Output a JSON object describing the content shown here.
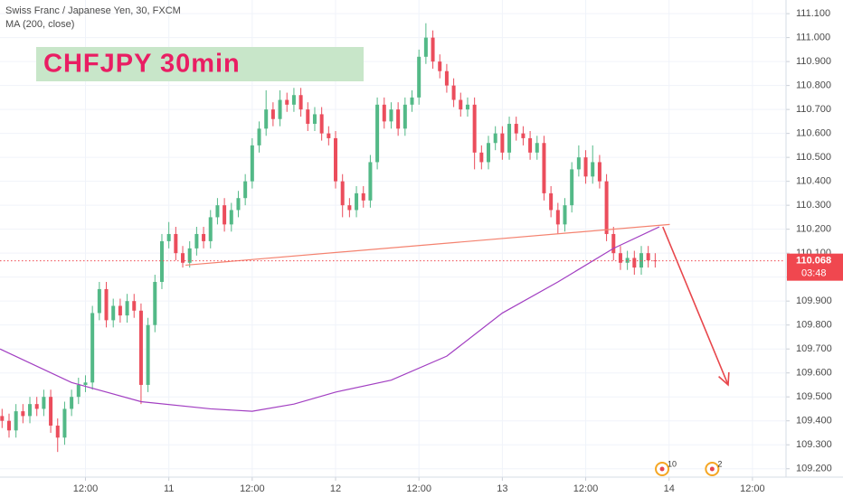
{
  "chart_data": {
    "type": "candlestick",
    "title": "Swiss Franc / Japanese Yen, 30, FXCM",
    "badge": "CHFJPY 30min",
    "xlim": [
      -0.3,
      112.7
    ],
    "ylim": [
      109.165,
      111.157
    ],
    "grid": true,
    "xticks": [
      {
        "value": 12,
        "label": "12:00"
      },
      {
        "value": 24,
        "label": "11"
      },
      {
        "value": 36,
        "label": "12:00"
      },
      {
        "value": 48,
        "label": "12"
      },
      {
        "value": 60,
        "label": "12:00"
      },
      {
        "value": 72,
        "label": "13"
      },
      {
        "value": 84,
        "label": "12:00"
      },
      {
        "value": 96,
        "label": "14"
      },
      {
        "value": 108,
        "label": "12:00"
      }
    ],
    "yticks": [
      {
        "value": 109.2,
        "label": "109.200"
      },
      {
        "value": 109.3,
        "label": "109.300"
      },
      {
        "value": 109.4,
        "label": "109.400"
      },
      {
        "value": 109.5,
        "label": "109.500"
      },
      {
        "value": 109.6,
        "label": "109.600"
      },
      {
        "value": 109.7,
        "label": "109.700"
      },
      {
        "value": 109.8,
        "label": "109.800"
      },
      {
        "value": 109.9,
        "label": "109.900"
      },
      {
        "value": 110.0,
        "label": "110.000"
      },
      {
        "value": 110.1,
        "label": "110.100"
      },
      {
        "value": 110.2,
        "label": "110.200"
      },
      {
        "value": 110.3,
        "label": "110.300"
      },
      {
        "value": 110.4,
        "label": "110.400"
      },
      {
        "value": 110.5,
        "label": "110.500"
      },
      {
        "value": 110.6,
        "label": "110.600"
      },
      {
        "value": 110.7,
        "label": "110.700"
      },
      {
        "value": 110.8,
        "label": "110.800"
      },
      {
        "value": 110.9,
        "label": "110.900"
      },
      {
        "value": 111.0,
        "label": "111.000"
      },
      {
        "value": 111.1,
        "label": "111.100"
      }
    ],
    "candles": {
      "up_color": "#53b987",
      "down_color": "#eb4d5c",
      "x": [
        0,
        1,
        2,
        3,
        4,
        5,
        6,
        7,
        8,
        9,
        10,
        11,
        12,
        13,
        14,
        15,
        16,
        17,
        18,
        19,
        20,
        21,
        22,
        23,
        24,
        25,
        26,
        27,
        28,
        29,
        30,
        31,
        32,
        33,
        34,
        35,
        36,
        37,
        38,
        39,
        40,
        41,
        42,
        43,
        44,
        45,
        46,
        47,
        48,
        49,
        50,
        51,
        52,
        53,
        54,
        55,
        56,
        57,
        58,
        59,
        60,
        61,
        62,
        63,
        64,
        65,
        66,
        67,
        68,
        69,
        70,
        71,
        72,
        73,
        74,
        75,
        76,
        77,
        78,
        79,
        80,
        81,
        82,
        83,
        84,
        85,
        86,
        87,
        88,
        89,
        90,
        91,
        92,
        93,
        94
      ],
      "open": [
        109.42,
        109.4,
        109.36,
        109.44,
        109.42,
        109.47,
        109.45,
        109.5,
        109.38,
        109.33,
        109.45,
        109.5,
        109.55,
        109.56,
        109.85,
        109.95,
        109.82,
        109.88,
        109.84,
        109.9,
        109.86,
        109.55,
        109.8,
        109.98,
        110.15,
        110.18,
        110.1,
        110.06,
        110.12,
        110.18,
        110.15,
        110.25,
        110.3,
        110.22,
        110.28,
        110.33,
        110.4,
        110.55,
        110.62,
        110.7,
        110.66,
        110.74,
        110.72,
        110.76,
        110.7,
        110.64,
        110.68,
        110.6,
        110.58,
        110.4,
        110.3,
        110.28,
        110.35,
        110.32,
        110.48,
        110.72,
        110.65,
        110.7,
        110.62,
        110.72,
        110.75,
        110.92,
        111.0,
        110.9,
        110.86,
        110.8,
        110.74,
        110.7,
        110.72,
        110.52,
        110.48,
        110.56,
        110.6,
        110.52,
        110.64,
        110.6,
        110.58,
        110.52,
        110.56,
        110.35,
        110.28,
        110.22,
        110.3,
        110.45,
        110.5,
        110.42,
        110.48,
        110.4,
        110.18,
        110.1,
        110.06,
        110.08,
        110.04,
        110.1,
        110.07
      ],
      "high": [
        109.45,
        109.43,
        109.47,
        109.47,
        109.5,
        109.5,
        109.53,
        109.53,
        109.41,
        109.48,
        109.53,
        109.58,
        109.59,
        109.88,
        109.98,
        109.98,
        109.91,
        109.91,
        109.93,
        109.93,
        109.89,
        109.83,
        110.01,
        110.18,
        110.23,
        110.21,
        110.13,
        110.15,
        110.21,
        110.21,
        110.28,
        110.33,
        110.33,
        110.31,
        110.36,
        110.43,
        110.58,
        110.65,
        110.78,
        110.73,
        110.78,
        110.77,
        110.79,
        110.79,
        110.73,
        110.71,
        110.71,
        110.63,
        110.61,
        110.43,
        110.33,
        110.38,
        110.38,
        110.51,
        110.75,
        110.75,
        110.73,
        110.73,
        110.75,
        110.78,
        110.95,
        111.06,
        111.03,
        110.93,
        110.89,
        110.83,
        110.77,
        110.75,
        110.75,
        110.55,
        110.59,
        110.63,
        110.63,
        110.67,
        110.67,
        110.63,
        110.61,
        110.59,
        110.59,
        110.38,
        110.31,
        110.33,
        110.48,
        110.55,
        110.53,
        110.55,
        110.51,
        110.43,
        110.21,
        110.13,
        110.11,
        110.11,
        110.13,
        110.13,
        110.1
      ],
      "low": [
        109.37,
        109.33,
        109.33,
        109.39,
        109.39,
        109.42,
        109.42,
        109.35,
        109.27,
        109.3,
        109.42,
        109.47,
        109.52,
        109.53,
        109.82,
        109.79,
        109.79,
        109.81,
        109.81,
        109.83,
        109.47,
        109.52,
        109.77,
        109.95,
        110.12,
        110.07,
        110.04,
        110.04,
        110.09,
        110.12,
        110.12,
        110.22,
        110.19,
        110.19,
        110.25,
        110.3,
        110.37,
        110.52,
        110.59,
        110.63,
        110.63,
        110.69,
        110.69,
        110.67,
        110.61,
        110.61,
        110.57,
        110.55,
        110.37,
        110.25,
        110.25,
        110.25,
        110.29,
        110.29,
        110.45,
        110.62,
        110.62,
        110.59,
        110.59,
        110.69,
        110.72,
        110.89,
        110.87,
        110.83,
        110.77,
        110.71,
        110.67,
        110.67,
        110.45,
        110.45,
        110.45,
        110.53,
        110.49,
        110.49,
        110.57,
        110.55,
        110.49,
        110.49,
        110.32,
        110.25,
        110.18,
        110.19,
        110.27,
        110.42,
        110.39,
        110.39,
        110.37,
        110.15,
        110.07,
        110.03,
        110.03,
        110.01,
        110.01,
        110.04,
        110.04
      ],
      "close": [
        109.4,
        109.36,
        109.44,
        109.42,
        109.47,
        109.45,
        109.5,
        109.38,
        109.33,
        109.45,
        109.5,
        109.55,
        109.56,
        109.85,
        109.95,
        109.82,
        109.88,
        109.84,
        109.9,
        109.86,
        109.55,
        109.8,
        109.98,
        110.15,
        110.18,
        110.1,
        110.06,
        110.12,
        110.18,
        110.15,
        110.25,
        110.3,
        110.22,
        110.28,
        110.33,
        110.4,
        110.55,
        110.62,
        110.7,
        110.66,
        110.74,
        110.72,
        110.76,
        110.7,
        110.64,
        110.68,
        110.6,
        110.58,
        110.4,
        110.3,
        110.28,
        110.35,
        110.32,
        110.48,
        110.72,
        110.65,
        110.7,
        110.62,
        110.72,
        110.75,
        110.92,
        111.0,
        110.9,
        110.86,
        110.8,
        110.74,
        110.7,
        110.72,
        110.52,
        110.48,
        110.56,
        110.6,
        110.52,
        110.64,
        110.6,
        110.58,
        110.52,
        110.56,
        110.35,
        110.28,
        110.22,
        110.3,
        110.45,
        110.5,
        110.42,
        110.48,
        110.4,
        110.18,
        110.1,
        110.06,
        110.08,
        110.04,
        110.1,
        110.07,
        110.068
      ]
    },
    "series": [
      {
        "name": "MA (200, close)",
        "color": "#a23fc2",
        "x": [
          -0.3,
          10,
          20,
          30,
          36,
          42,
          48,
          56,
          64,
          72,
          80,
          88,
          94.6
        ],
        "values": [
          109.7,
          109.56,
          109.48,
          109.45,
          109.44,
          109.47,
          109.52,
          109.57,
          109.67,
          109.85,
          109.98,
          110.12,
          110.21
        ]
      }
    ],
    "last_price": 110.068,
    "last_price_color": "#f0474f",
    "countdown": "03:48",
    "trendline": {
      "x": [
        26.4,
        96.1
      ],
      "y": [
        110.05,
        110.22
      ],
      "color": "#f4826f"
    },
    "arrow": {
      "x": [
        95.1,
        104.5
      ],
      "y": [
        110.21,
        109.55
      ],
      "color": "#e8474c"
    },
    "event_markers": [
      {
        "x": 95.0,
        "label": "10"
      },
      {
        "x": 102.2,
        "label": "2"
      }
    ]
  }
}
